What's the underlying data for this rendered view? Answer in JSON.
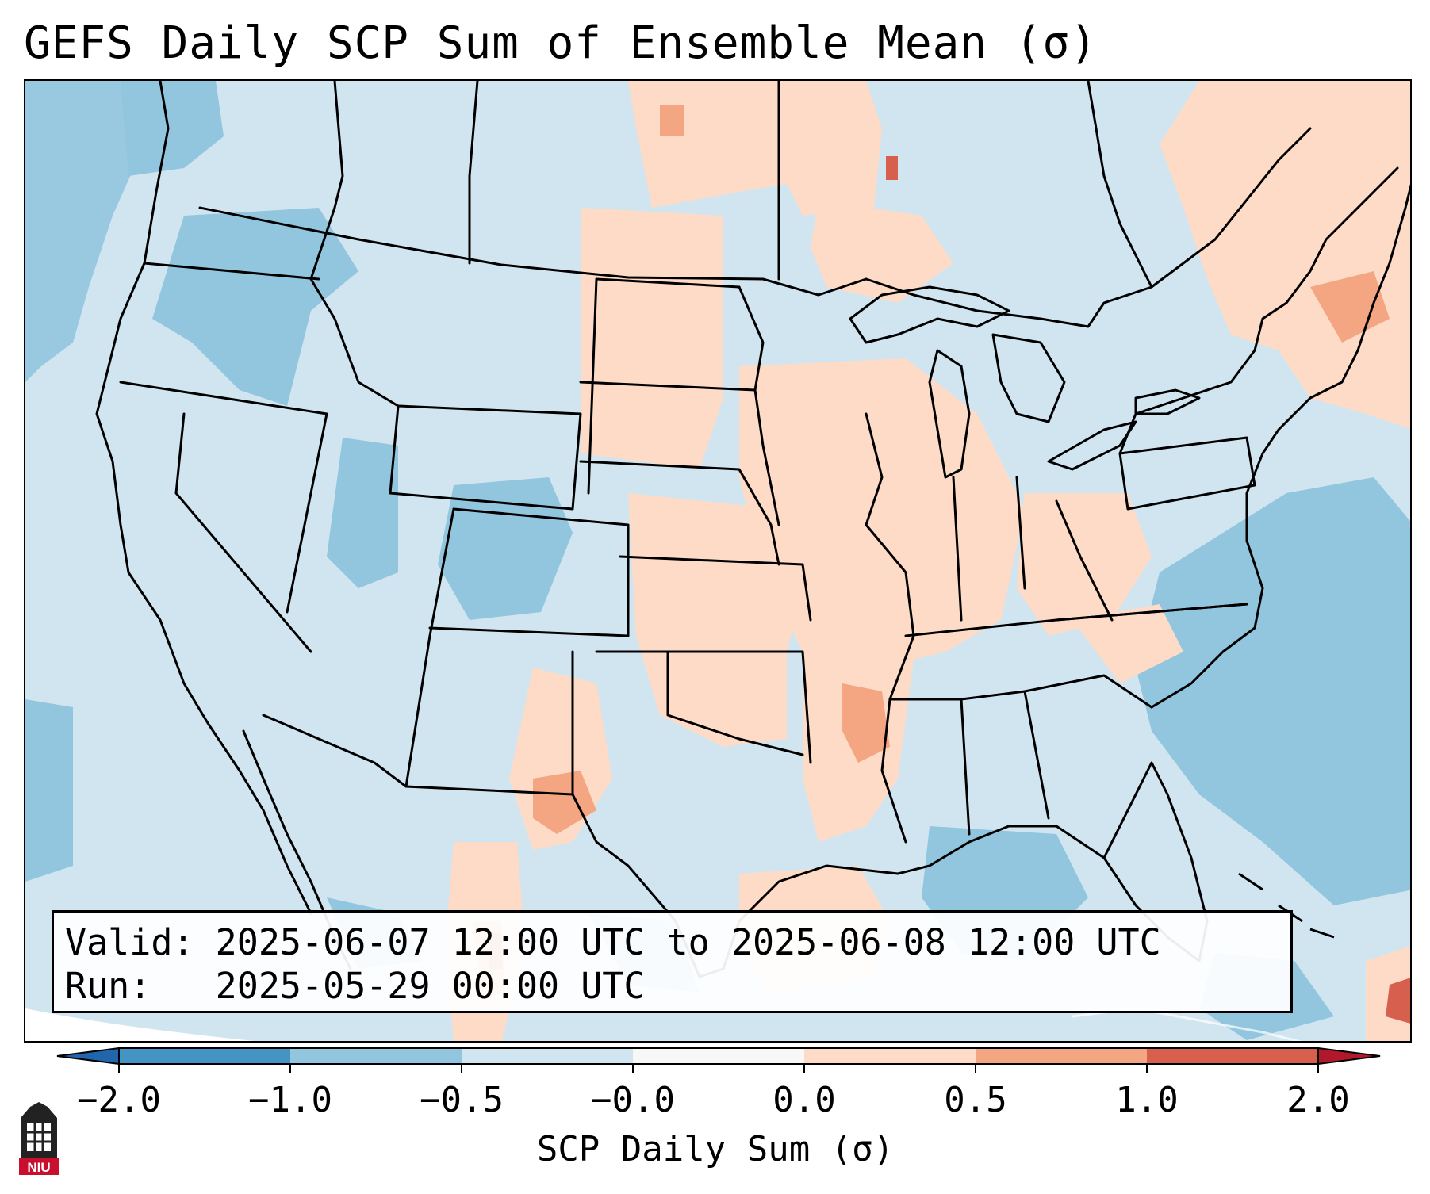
{
  "title": "GEFS Daily SCP Sum of Ensemble Mean (σ)",
  "info": {
    "valid": "Valid: 2025-06-07 12:00 UTC to 2025-06-08 12:00 UTC",
    "run": "Run:   2025-05-29 00:00 UTC"
  },
  "colorbar": {
    "label": "SCP Daily Sum (σ)",
    "ticks": [
      "−2.0",
      "−1.0",
      "−0.5",
      "−0.0",
      "0.0",
      "0.5",
      "1.0",
      "2.0"
    ],
    "colors": [
      "#4393c3",
      "#92c5de",
      "#d1e5f0",
      "#f7f7f7",
      "#fddbc7",
      "#f4a582",
      "#d6604d"
    ],
    "under_color": "#2166ac",
    "over_color": "#b2182b"
  },
  "map": {
    "background_value": "#d1e5f0",
    "outline_color": "#000000"
  },
  "logo": {
    "text": "NIU"
  }
}
